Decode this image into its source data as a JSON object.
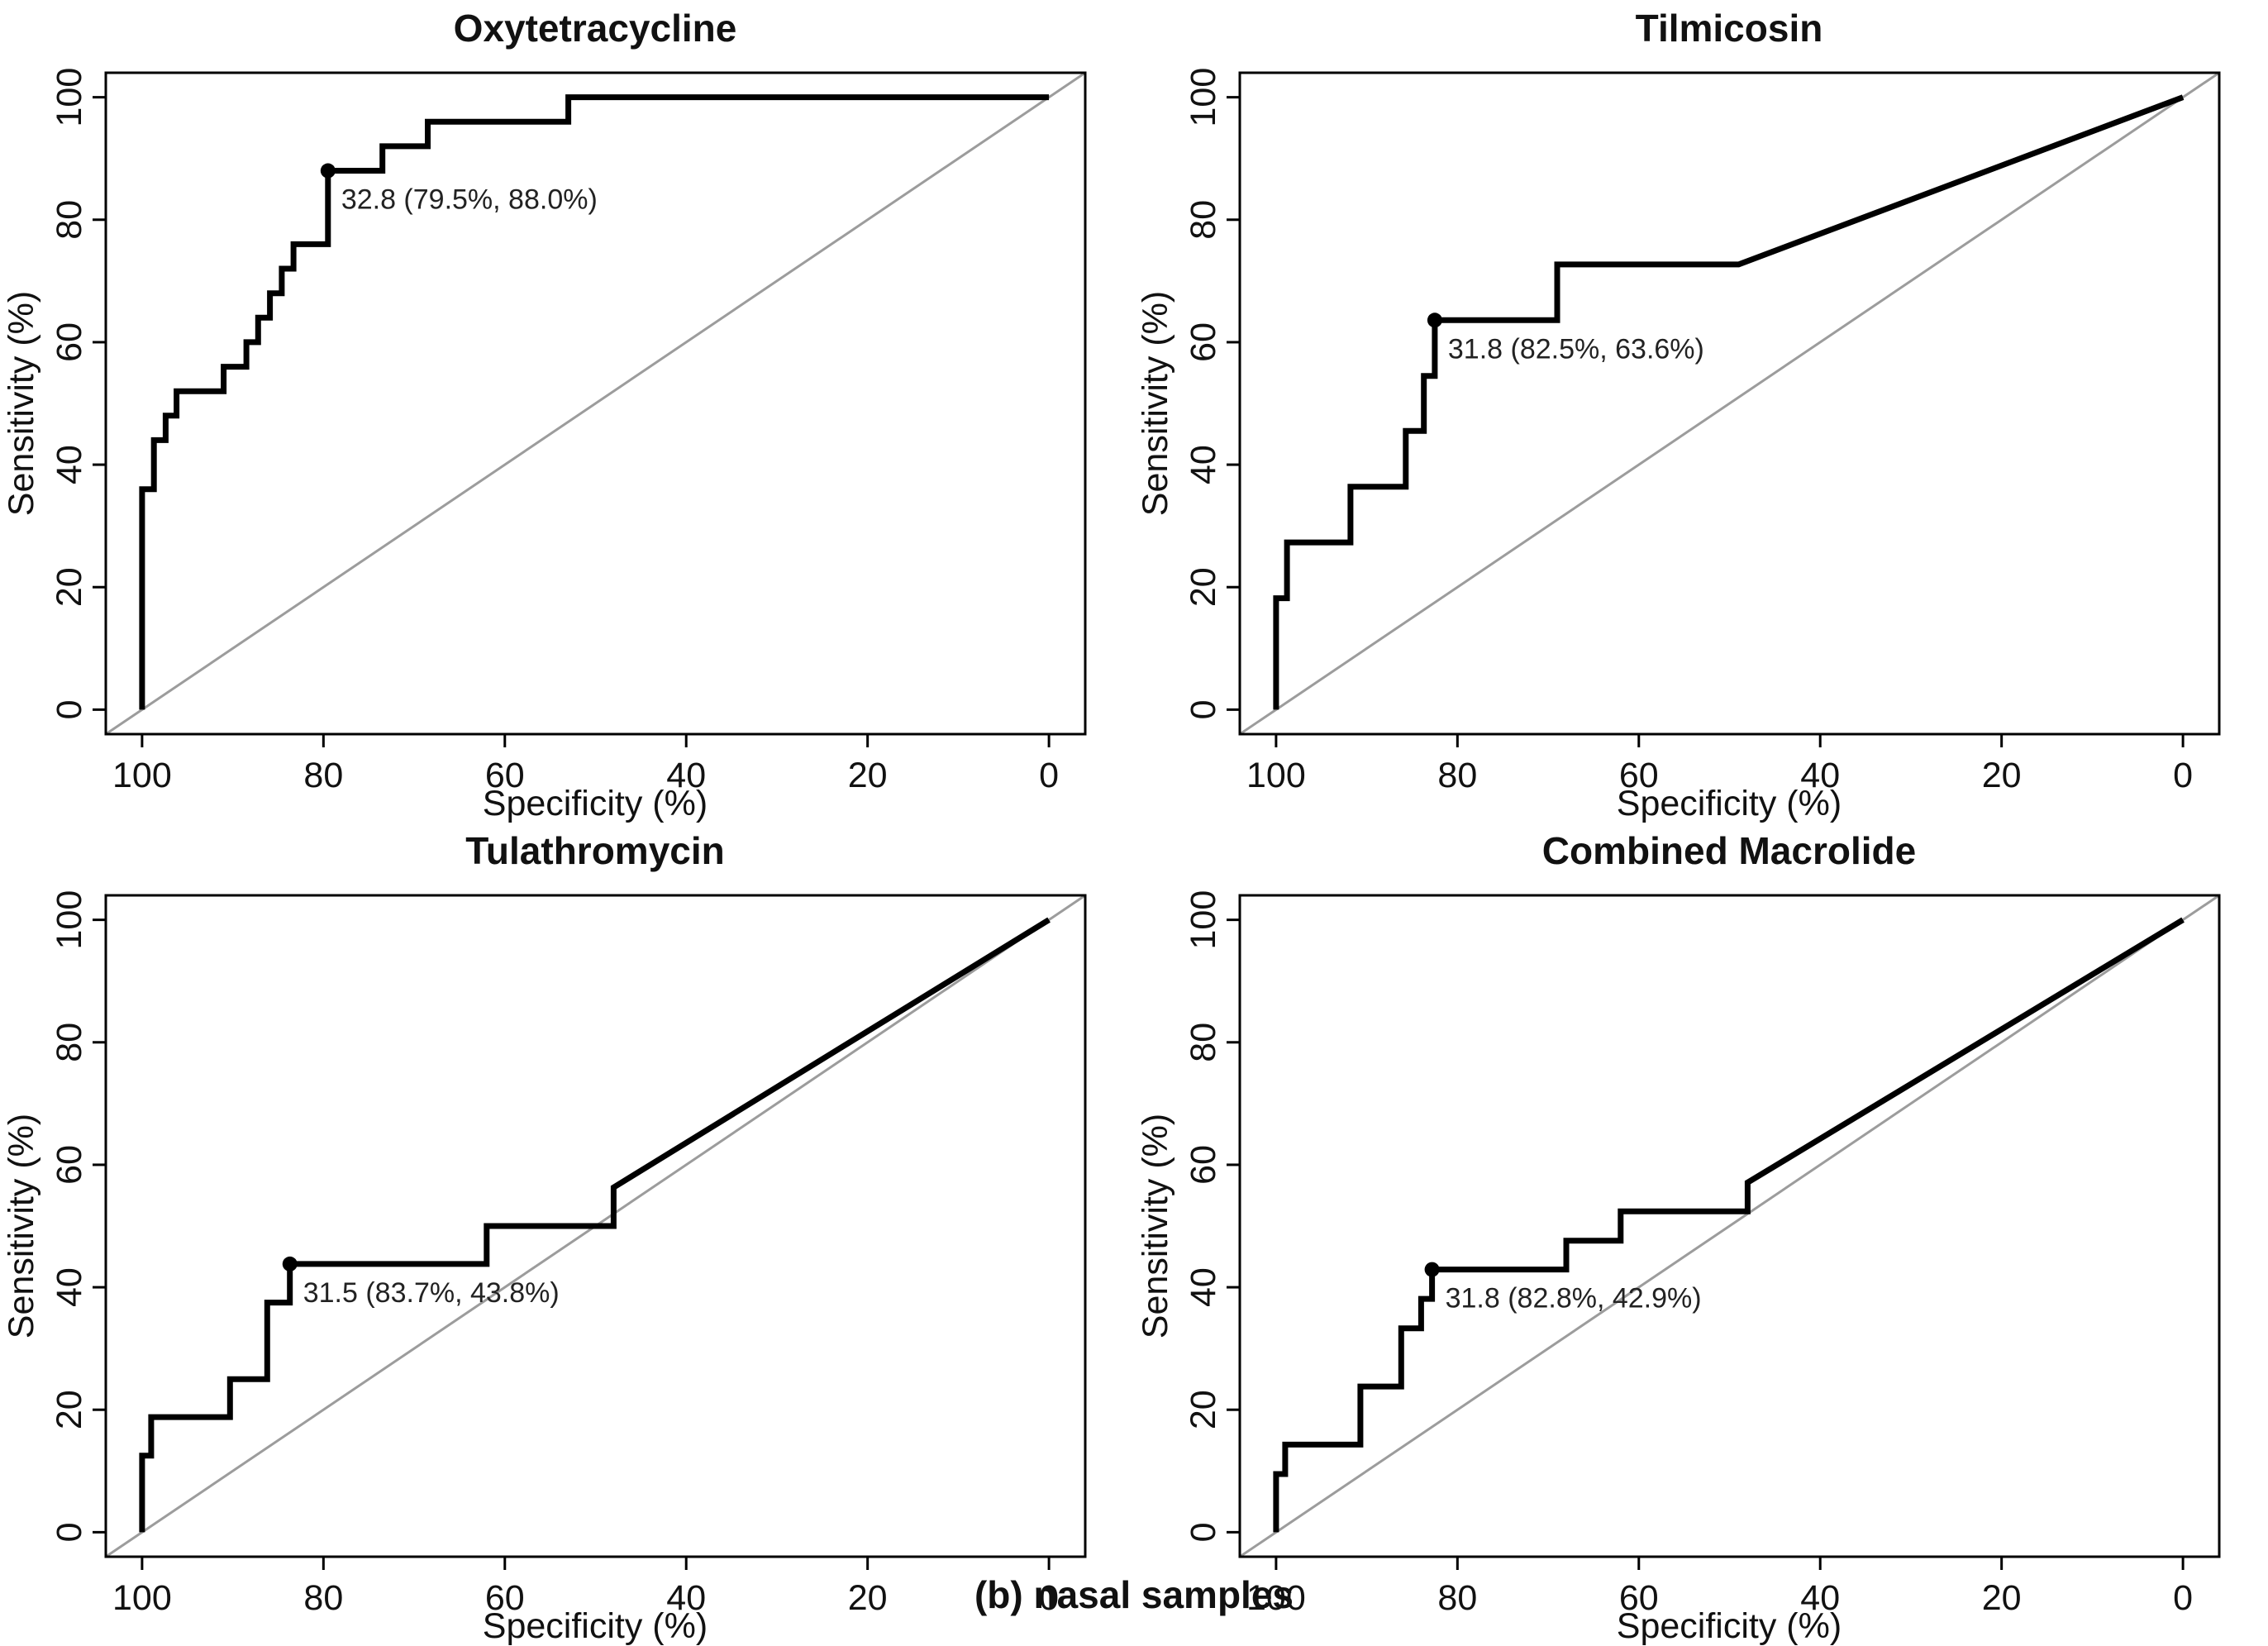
{
  "figure": {
    "caption": "(b) nasal samples",
    "background_color": "#ffffff",
    "curve_color": "#000000",
    "reference_line_color": "#9c9c9c",
    "text_color": "#111111"
  },
  "chart_data": [
    {
      "type": "line",
      "title": "Oxytetracycline",
      "xlabel": "Specificity (%)",
      "ylabel": "Sensitivity (%)",
      "x_ticks": [
        100,
        80,
        60,
        40,
        20,
        0
      ],
      "y_ticks": [
        0,
        20,
        40,
        60,
        80,
        100
      ],
      "xlim": [
        100,
        0
      ],
      "ylim": [
        0,
        100
      ],
      "x_axis_reversed": true,
      "grid": false,
      "reference_line": "chance-diagonal",
      "series": [
        {
          "name": "ROC curve",
          "points": [
            [
              100,
              0
            ],
            [
              100,
              36
            ],
            [
              98.7,
              36
            ],
            [
              98.7,
              44
            ],
            [
              97.4,
              44
            ],
            [
              97.4,
              48
            ],
            [
              96.2,
              48
            ],
            [
              96.2,
              52
            ],
            [
              91,
              52
            ],
            [
              91,
              56
            ],
            [
              88.5,
              56
            ],
            [
              88.5,
              60
            ],
            [
              87.2,
              60
            ],
            [
              87.2,
              64
            ],
            [
              85.9,
              64
            ],
            [
              85.9,
              68
            ],
            [
              84.6,
              68
            ],
            [
              84.6,
              72
            ],
            [
              83.3,
              72
            ],
            [
              83.3,
              76
            ],
            [
              79.5,
              76
            ],
            [
              79.5,
              88
            ],
            [
              73.5,
              88
            ],
            [
              73.5,
              92
            ],
            [
              68.5,
              92
            ],
            [
              68.5,
              96
            ],
            [
              53,
              96
            ],
            [
              53,
              100
            ],
            [
              0,
              100
            ]
          ]
        }
      ],
      "threshold": {
        "value": 32.8,
        "specificity": 79.5,
        "sensitivity": 88.0,
        "label": "32.8 (79.5%, 88.0%)"
      }
    },
    {
      "type": "line",
      "title": "Tilmicosin",
      "xlabel": "Specificity (%)",
      "ylabel": "Sensitivity (%)",
      "x_ticks": [
        100,
        80,
        60,
        40,
        20,
        0
      ],
      "y_ticks": [
        0,
        20,
        40,
        60,
        80,
        100
      ],
      "xlim": [
        100,
        0
      ],
      "ylim": [
        0,
        100
      ],
      "x_axis_reversed": true,
      "grid": false,
      "reference_line": "chance-diagonal",
      "series": [
        {
          "name": "ROC curve",
          "points": [
            [
              100,
              0
            ],
            [
              100,
              18.2
            ],
            [
              98.8,
              18.2
            ],
            [
              98.8,
              27.3
            ],
            [
              91.8,
              27.3
            ],
            [
              91.8,
              36.4
            ],
            [
              85.7,
              36.4
            ],
            [
              85.7,
              45.5
            ],
            [
              83.7,
              45.5
            ],
            [
              83.7,
              54.5
            ],
            [
              82.5,
              54.5
            ],
            [
              82.5,
              63.6
            ],
            [
              69,
              63.6
            ],
            [
              69,
              72.7
            ],
            [
              49,
              72.7
            ],
            [
              0,
              100
            ]
          ]
        }
      ],
      "threshold": {
        "value": 31.8,
        "specificity": 82.5,
        "sensitivity": 63.6,
        "label": "31.8 (82.5%, 63.6%)"
      }
    },
    {
      "type": "line",
      "title": "Tulathromycin",
      "xlabel": "Specificity (%)",
      "ylabel": "Sensitivity (%)",
      "x_ticks": [
        100,
        80,
        60,
        40,
        20,
        0
      ],
      "y_ticks": [
        0,
        20,
        40,
        60,
        80,
        100
      ],
      "xlim": [
        100,
        0
      ],
      "ylim": [
        0,
        100
      ],
      "x_axis_reversed": true,
      "grid": false,
      "reference_line": "chance-diagonal",
      "series": [
        {
          "name": "ROC curve",
          "points": [
            [
              100,
              0
            ],
            [
              100,
              12.5
            ],
            [
              99,
              12.5
            ],
            [
              99,
              18.8
            ],
            [
              90.3,
              18.8
            ],
            [
              90.3,
              25
            ],
            [
              86.2,
              25
            ],
            [
              86.2,
              37.5
            ],
            [
              83.7,
              37.5
            ],
            [
              83.7,
              43.8
            ],
            [
              62,
              43.8
            ],
            [
              62,
              50
            ],
            [
              48,
              50
            ],
            [
              48,
              56.3
            ],
            [
              0,
              100
            ]
          ]
        }
      ],
      "threshold": {
        "value": 31.5,
        "specificity": 83.7,
        "sensitivity": 43.8,
        "label": "31.5 (83.7%, 43.8%)"
      }
    },
    {
      "type": "line",
      "title": "Combined Macrolide",
      "xlabel": "Specificity (%)",
      "ylabel": "Sensitivity (%)",
      "x_ticks": [
        100,
        80,
        60,
        40,
        20,
        0
      ],
      "y_ticks": [
        0,
        20,
        40,
        60,
        80,
        100
      ],
      "xlim": [
        100,
        0
      ],
      "ylim": [
        0,
        100
      ],
      "x_axis_reversed": true,
      "grid": false,
      "reference_line": "chance-diagonal",
      "series": [
        {
          "name": "ROC curve",
          "points": [
            [
              100,
              0
            ],
            [
              100,
              9.5
            ],
            [
              99,
              9.5
            ],
            [
              99,
              14.3
            ],
            [
              90.7,
              14.3
            ],
            [
              90.7,
              23.8
            ],
            [
              86.2,
              23.8
            ],
            [
              86.2,
              33.3
            ],
            [
              84,
              33.3
            ],
            [
              84,
              38.1
            ],
            [
              82.8,
              38.1
            ],
            [
              82.8,
              42.9
            ],
            [
              68,
              42.9
            ],
            [
              68,
              47.6
            ],
            [
              62,
              47.6
            ],
            [
              62,
              52.4
            ],
            [
              48,
              52.4
            ],
            [
              48,
              57.1
            ],
            [
              0,
              100
            ]
          ]
        }
      ],
      "threshold": {
        "value": 31.8,
        "specificity": 82.8,
        "sensitivity": 42.9,
        "label": "31.8 (82.8%, 42.9%)"
      }
    }
  ]
}
